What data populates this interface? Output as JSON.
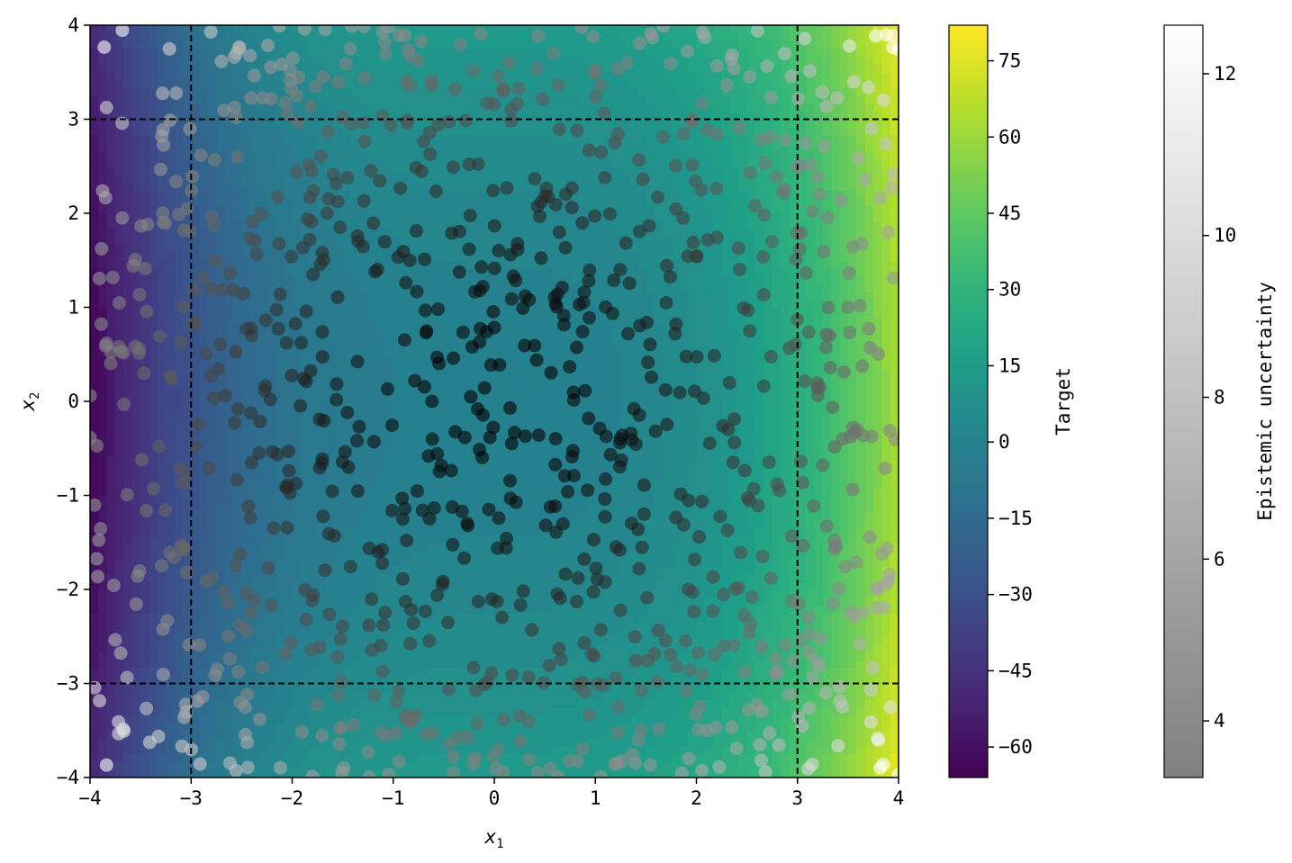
{
  "chart_data": {
    "type": "scatter",
    "background": "filled-contour",
    "xlabel_var": "x",
    "xlabel_sub": "1",
    "ylabel_var": "x",
    "ylabel_sub": "2",
    "xlim": [
      -4,
      4
    ],
    "ylim": [
      -4,
      4
    ],
    "x_ticks": [
      -4,
      -3,
      -2,
      -1,
      0,
      1,
      2,
      3,
      4
    ],
    "y_ticks": [
      -4,
      -3,
      -2,
      -1,
      0,
      1,
      2,
      3,
      4
    ],
    "x_tick_labels": [
      "−4",
      "−3",
      "−2",
      "−1",
      "0",
      "1",
      "2",
      "3",
      "4"
    ],
    "y_tick_labels": [
      "−4",
      "−3",
      "−2",
      "−1",
      "0",
      "1",
      "2",
      "3",
      "4"
    ],
    "reference_lines": {
      "vertical": [
        -3,
        3
      ],
      "horizontal": [
        -3,
        3
      ],
      "style": "dashed",
      "color": "#000000"
    },
    "target_function": "x1^3 + x2^2",
    "target_colorbar": {
      "label": "Target",
      "range": [
        -66,
        82
      ],
      "ticks": [
        -60,
        -45,
        -30,
        -15,
        0,
        15,
        30,
        45,
        60,
        75
      ],
      "tick_labels": [
        "−60",
        "−45",
        "−30",
        "−15",
        "0",
        "15",
        "30",
        "45",
        "60",
        "75"
      ],
      "colormap": "viridis",
      "levels": 50
    },
    "uncertainty_colorbar": {
      "label": "Epistemic uncertainty",
      "range": [
        3.3,
        12.6
      ],
      "ticks": [
        4,
        6,
        8,
        10,
        12
      ],
      "tick_labels": [
        "4",
        "6",
        "8",
        "10",
        "12"
      ],
      "colormap": "gray-to-white"
    },
    "points": {
      "count": 1000,
      "distribution": "uniform on [-4,4] x [-4,4]",
      "color_encoding": "epistemic uncertainty, dark near origin, light near edges",
      "alpha": 0.6
    }
  },
  "colors": {
    "viridis_dark": "#440154",
    "viridis_mid": "#21918c",
    "viridis_light": "#fde725",
    "dashed_line": "#000000"
  }
}
